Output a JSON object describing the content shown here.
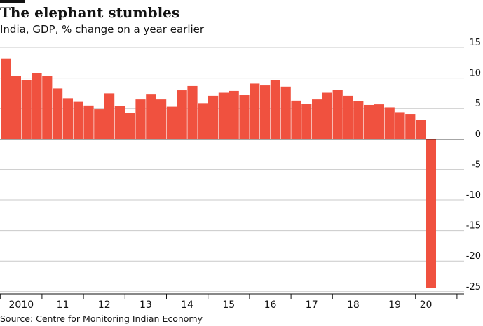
{
  "title": "The elephant stumbles",
  "subtitle": "India, GDP, % change on a year earlier",
  "source": "Source: Centre for Monitoring Indian Economy",
  "chart_data": {
    "type": "bar",
    "title": "The elephant stumbles",
    "subtitle": "India, GDP, % change on a year earlier",
    "bar_color": "#f0513f",
    "gridline_color": "#c9c9c9",
    "axis_color": "#121212",
    "y_axis_position": "right",
    "ylim": [
      -25,
      15
    ],
    "yticks": [
      15,
      10,
      5,
      0,
      -5,
      -10,
      -15,
      -20,
      -25
    ],
    "ytick_labels": [
      "15",
      "10",
      "5",
      "0",
      "-5",
      "-10",
      "-15",
      "-20",
      "-25"
    ],
    "grid": true,
    "year_labels": [
      "2010",
      "11",
      "12",
      "13",
      "14",
      "15",
      "16",
      "17",
      "18",
      "19",
      "20"
    ],
    "quarters_per_year": 4,
    "values": [
      13.2,
      10.3,
      9.7,
      10.8,
      10.3,
      8.3,
      6.7,
      6.1,
      5.5,
      4.9,
      7.5,
      5.4,
      4.3,
      6.5,
      7.3,
      6.5,
      5.3,
      8.0,
      8.7,
      5.9,
      7.1,
      7.6,
      7.9,
      7.2,
      9.1,
      8.8,
      9.7,
      8.6,
      6.3,
      5.8,
      6.5,
      7.6,
      8.1,
      7.1,
      6.2,
      5.6,
      5.7,
      5.2,
      4.4,
      4.1,
      3.1,
      -24.4
    ]
  }
}
